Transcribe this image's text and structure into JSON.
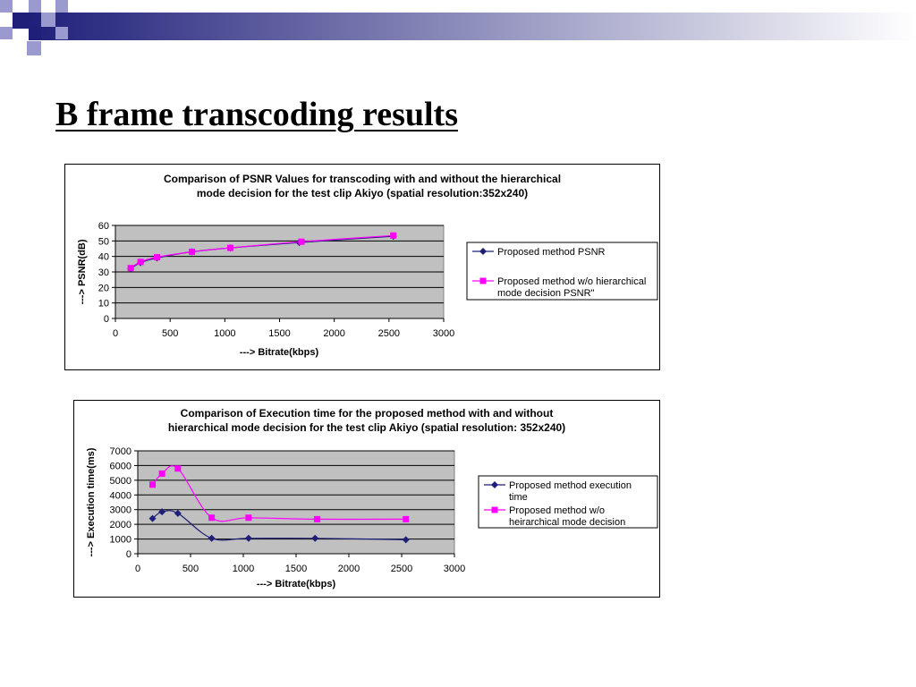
{
  "slide": {
    "title": "B frame transcoding results",
    "banner_colors": [
      "#1f1f7a",
      "#9a9acf"
    ]
  },
  "chart_data": [
    {
      "type": "line",
      "title_lines": [
        "Comparison of PSNR Values for transcoding with and without the hierarchical",
        "mode decision for the test clip Akiyo (spatial resolution:352x240)"
      ],
      "xlabel": "---> Bitrate(kbps)",
      "ylabel": "---> PSNR(dB)",
      "xlim": [
        0,
        3000
      ],
      "ylim": [
        0,
        60
      ],
      "xticks": [
        0,
        500,
        1000,
        1500,
        2000,
        2500,
        3000
      ],
      "yticks": [
        0,
        10,
        20,
        30,
        40,
        50,
        60
      ],
      "grid": true,
      "plot_background": "#c0c0c0",
      "legend_position": "right",
      "series": [
        {
          "name_lines": [
            "Proposed method PSNR"
          ],
          "color": "#1f1f7a",
          "marker": "diamond",
          "x": [
            140,
            230,
            380,
            700,
            1050,
            1680,
            2540
          ],
          "y": [
            32,
            36,
            39,
            43,
            45.5,
            49,
            53
          ]
        },
        {
          "name_lines": [
            "Proposed method w/o hierarchical",
            "mode decision PSNR\""
          ],
          "color": "#ff00ff",
          "marker": "square",
          "x": [
            140,
            230,
            380,
            700,
            1050,
            1700,
            2540
          ],
          "y": [
            32.5,
            36.5,
            39.5,
            43,
            45.5,
            49.5,
            53.5
          ]
        }
      ]
    },
    {
      "type": "line",
      "title_lines": [
        "Comparison of Execution time for the proposed method with and without",
        "hierarchical mode decision for the test clip Akiyo (spatial resolution: 352x240)"
      ],
      "xlabel": "---> Bitrate(kbps)",
      "ylabel": "---> Execution time(ms)",
      "xlim": [
        0,
        3000
      ],
      "ylim": [
        0,
        7000
      ],
      "xticks": [
        0,
        500,
        1000,
        1500,
        2000,
        2500,
        3000
      ],
      "yticks": [
        0,
        1000,
        2000,
        3000,
        4000,
        5000,
        6000,
        7000
      ],
      "grid": true,
      "plot_background": "#c0c0c0",
      "legend_position": "right",
      "series": [
        {
          "name_lines": [
            "Proposed method execution",
            "time"
          ],
          "color": "#1f1f7a",
          "marker": "diamond",
          "x": [
            140,
            230,
            380,
            700,
            1050,
            1680,
            2540
          ],
          "y": [
            2400,
            2850,
            2750,
            1050,
            1050,
            1050,
            950
          ]
        },
        {
          "name_lines": [
            "Proposed method w/o",
            "heirarchical mode decision"
          ],
          "color": "#ff00ff",
          "marker": "square",
          "x": [
            140,
            230,
            380,
            700,
            1050,
            1700,
            2540
          ],
          "y": [
            4700,
            5450,
            5800,
            2450,
            2450,
            2350,
            2350
          ]
        }
      ]
    }
  ]
}
